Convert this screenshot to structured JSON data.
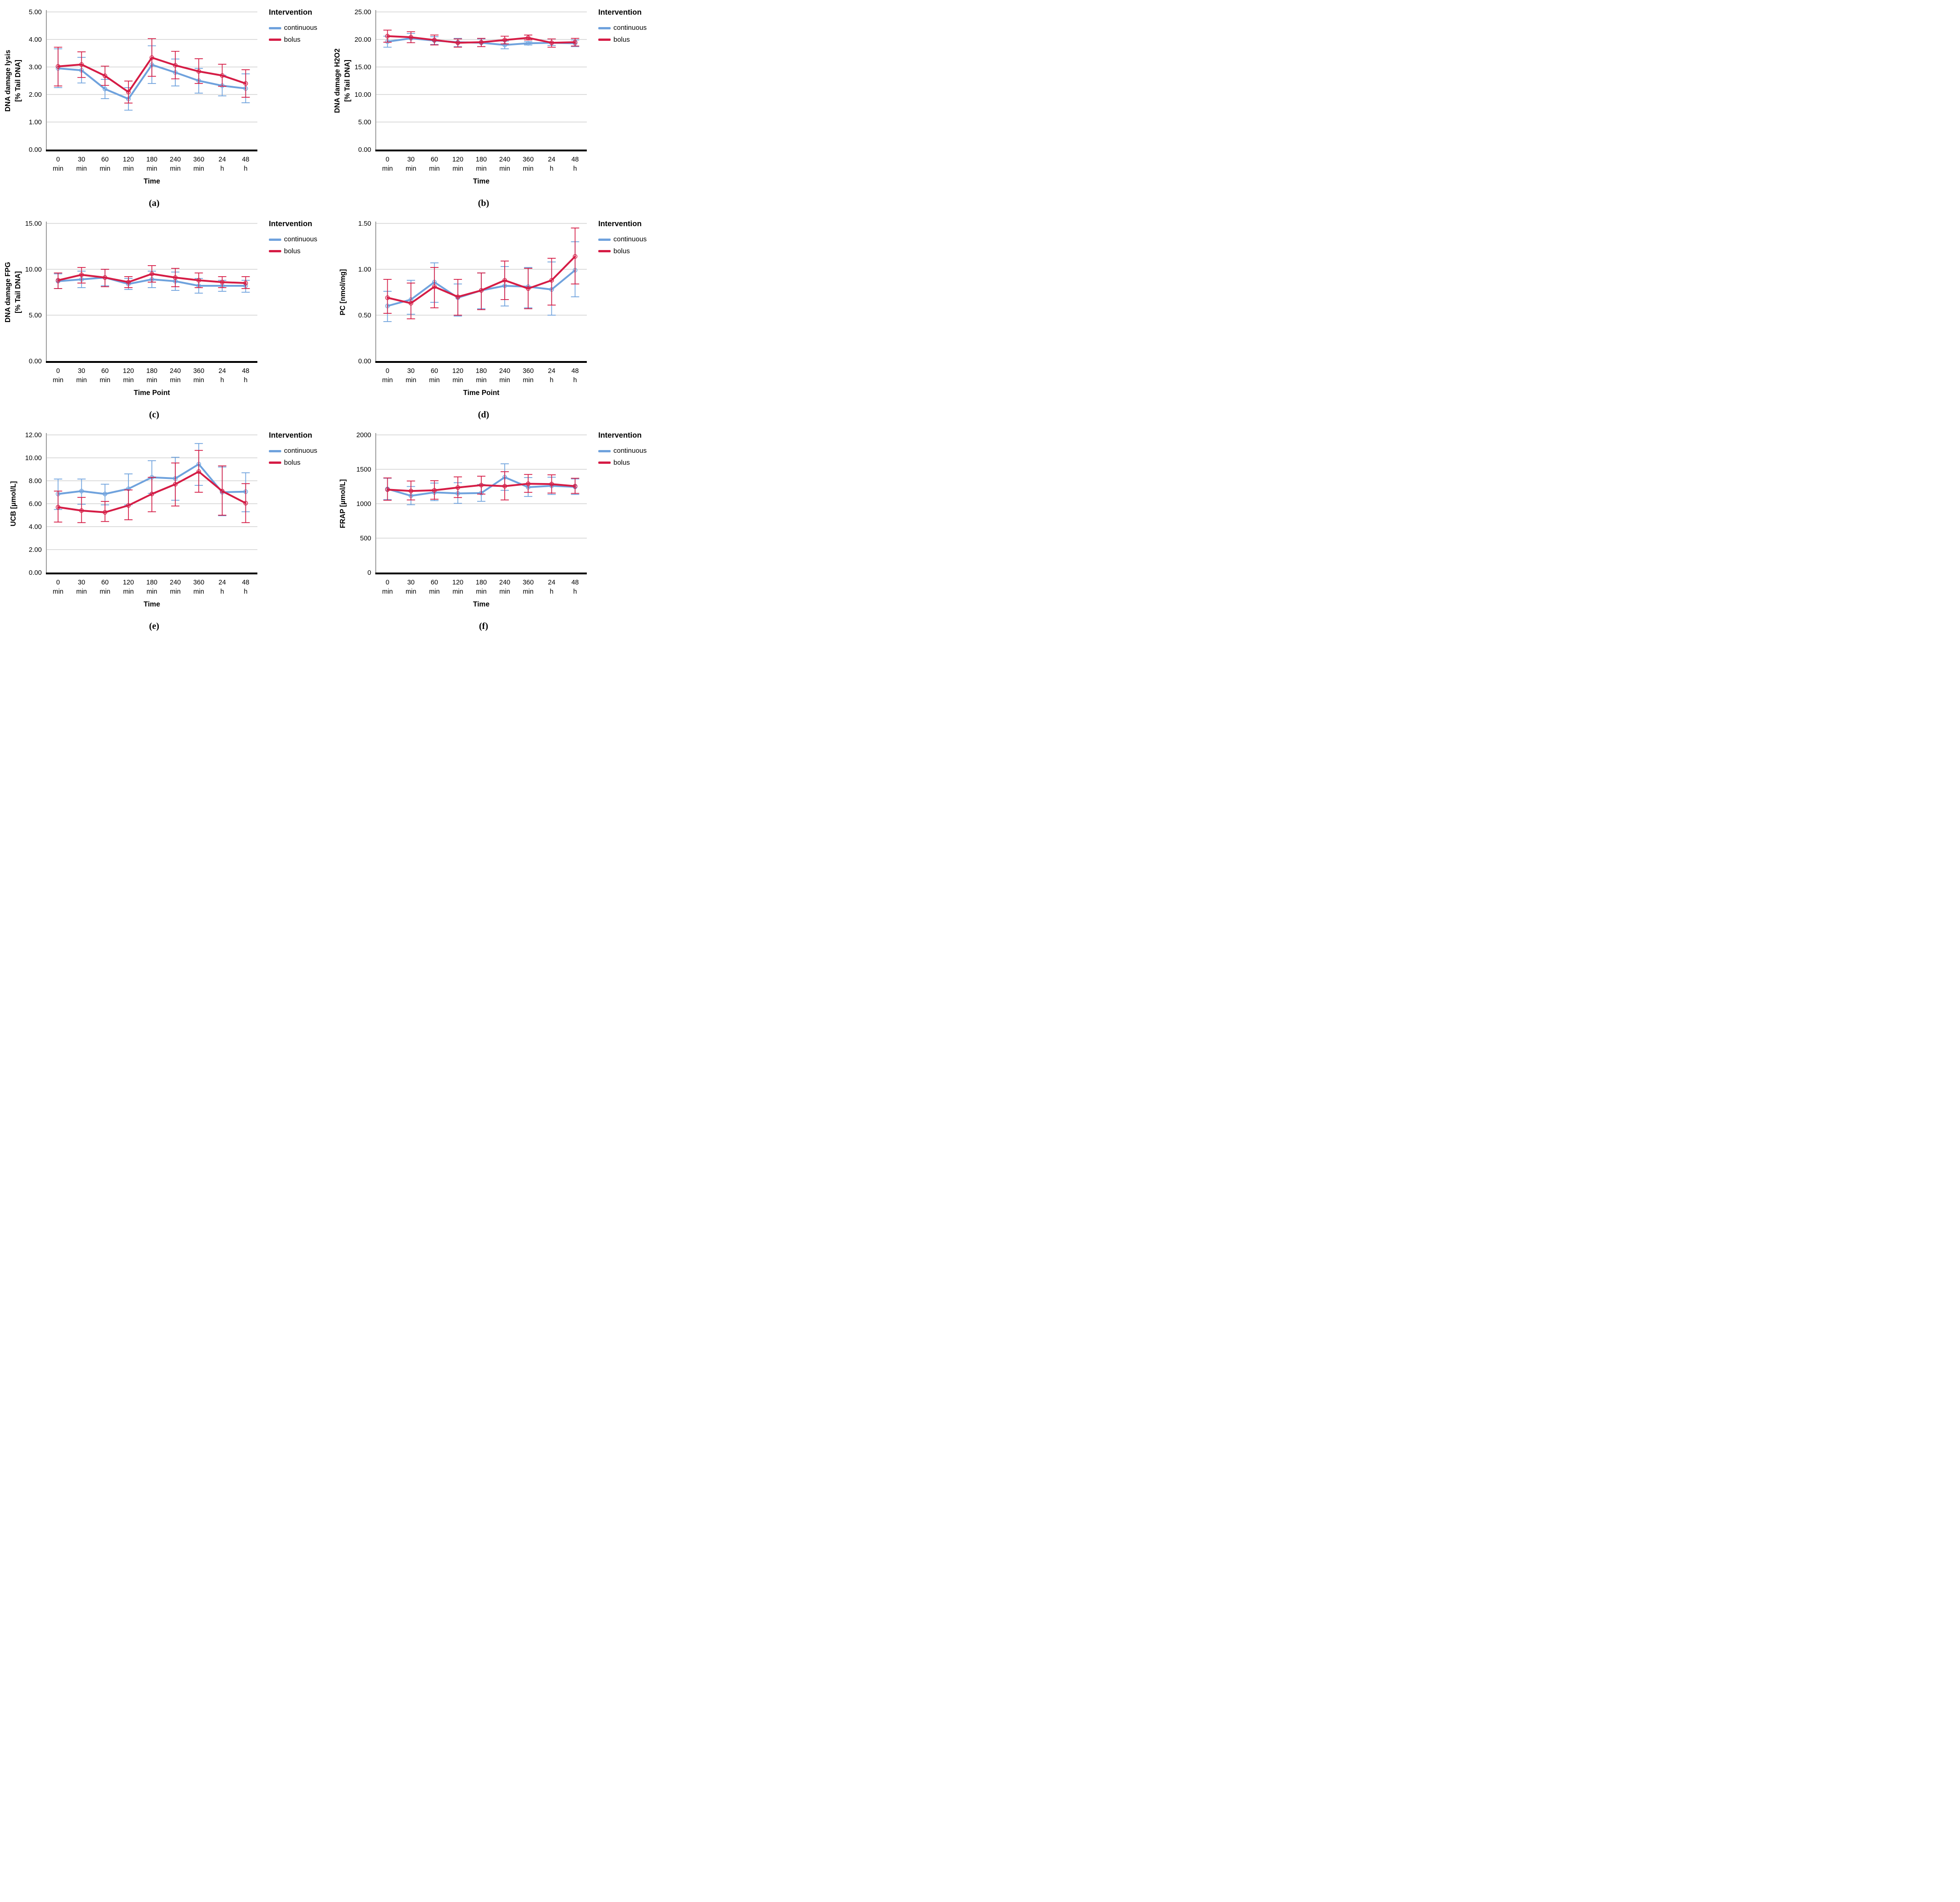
{
  "colors": {
    "continuous": "#6FA2DD",
    "bolus": "#D51C45",
    "gridline": "#C9C9C9",
    "axis_line": "#9E9E9E",
    "x_axis_line": "#000000"
  },
  "legend": {
    "title": "Intervention",
    "entries": [
      {
        "label": "continuous",
        "color_key": "continuous"
      },
      {
        "label": "bolus",
        "color_key": "bolus"
      }
    ]
  },
  "x_ticks": {
    "line1": [
      "0",
      "30",
      "60",
      "120",
      "180",
      "240",
      "360",
      "24",
      "48"
    ],
    "line2": [
      "min",
      "min",
      "min",
      "min",
      "min",
      "min",
      "min",
      "h",
      "h"
    ]
  },
  "chart_data": [
    {
      "key": "a",
      "type": "line",
      "caption": "(a)",
      "ylabel": "DNA damage lysis [% Tail DNA]",
      "ylabel_lines": [
        "DNA damage lysis",
        "[% Tail DNA]"
      ],
      "xlabel": "Time",
      "ylim": [
        0,
        5
      ],
      "yticks": [
        0,
        1,
        2,
        3,
        4,
        5
      ],
      "ytick_labels": [
        "0.00",
        "1.00",
        "2.00",
        "3.00",
        "4.00",
        "5.00"
      ],
      "categories": [
        "0 min",
        "30 min",
        "60 min",
        "120 min",
        "180 min",
        "240 min",
        "360 min",
        "24 h",
        "48 h"
      ],
      "series": [
        {
          "name": "continuous",
          "values": [
            2.95,
            2.88,
            2.2,
            1.84,
            3.08,
            2.8,
            2.5,
            2.32,
            2.22
          ],
          "err_low": [
            2.25,
            2.42,
            1.85,
            1.43,
            2.4,
            2.31,
            2.05,
            1.95,
            1.7
          ],
          "err_high": [
            3.66,
            3.35,
            2.55,
            2.25,
            3.77,
            3.29,
            2.95,
            2.7,
            2.75
          ]
        },
        {
          "name": "bolus",
          "values": [
            3.02,
            3.09,
            2.68,
            2.09,
            3.34,
            3.06,
            2.84,
            2.69,
            2.4
          ],
          "err_low": [
            2.31,
            2.62,
            2.33,
            1.69,
            2.66,
            2.57,
            2.4,
            2.3,
            1.9
          ],
          "err_high": [
            3.72,
            3.55,
            3.03,
            2.49,
            4.03,
            3.57,
            3.3,
            3.1,
            2.9
          ]
        }
      ]
    },
    {
      "key": "b",
      "type": "line",
      "caption": "(b)",
      "ylabel": "DNA damage H2O2 [% Tail DNA]",
      "ylabel_lines": [
        "DNA damage H2O2",
        "[% Tail DNA]"
      ],
      "xlabel": "Time",
      "ylim": [
        0,
        25
      ],
      "yticks": [
        0,
        5,
        10,
        15,
        20,
        25
      ],
      "ytick_labels": [
        "0.00",
        "5.00",
        "10.00",
        "15.00",
        "20.00",
        "25.00"
      ],
      "categories": [
        "0 min",
        "30 min",
        "60 min",
        "120 min",
        "180 min",
        "240 min",
        "360 min",
        "24 h",
        "48 h"
      ],
      "series": [
        {
          "name": "continuous",
          "values": [
            19.6,
            20.2,
            19.8,
            19.5,
            19.4,
            19.0,
            19.3,
            19.4,
            19.3
          ],
          "err_low": [
            18.6,
            19.4,
            19.1,
            18.7,
            18.7,
            18.3,
            19.0,
            18.9,
            18.7
          ],
          "err_high": [
            20.6,
            21.1,
            20.5,
            20.2,
            20.1,
            19.7,
            19.6,
            20.1,
            19.9
          ]
        },
        {
          "name": "bolus",
          "values": [
            20.6,
            20.4,
            19.9,
            19.4,
            19.5,
            19.9,
            20.3,
            19.4,
            19.5
          ],
          "err_low": [
            19.5,
            19.4,
            19.0,
            18.6,
            18.7,
            19.2,
            19.9,
            18.6,
            18.8
          ],
          "err_high": [
            21.7,
            21.4,
            20.8,
            20.1,
            20.2,
            20.6,
            20.8,
            20.1,
            20.2
          ]
        }
      ]
    },
    {
      "key": "c",
      "type": "line",
      "caption": "(c)",
      "ylabel": "DNA damage FPG [% Tail DNA]",
      "ylabel_lines": [
        "DNA damage FPG",
        "[% Tail DNA]"
      ],
      "xlabel": "Time Point",
      "ylim": [
        0,
        15
      ],
      "yticks": [
        0,
        5,
        10,
        15
      ],
      "ytick_labels": [
        "0.00",
        "5.00",
        "10.00",
        "15.00"
      ],
      "categories": [
        "0 min",
        "30 min",
        "60 min",
        "120 min",
        "180 min",
        "240 min",
        "360 min",
        "24 h",
        "48 h"
      ],
      "series": [
        {
          "name": "continuous",
          "values": [
            8.7,
            8.9,
            9.1,
            8.4,
            8.9,
            8.7,
            8.2,
            8.2,
            8.2
          ],
          "err_low": [
            7.9,
            8.0,
            8.2,
            7.8,
            8.0,
            7.7,
            7.4,
            7.6,
            7.5
          ],
          "err_high": [
            9.5,
            9.8,
            10.0,
            9.0,
            9.8,
            9.7,
            9.0,
            8.8,
            8.8
          ]
        },
        {
          "name": "bolus",
          "values": [
            8.8,
            9.4,
            9.1,
            8.6,
            9.5,
            9.1,
            8.8,
            8.6,
            8.5
          ],
          "err_low": [
            7.9,
            8.5,
            8.1,
            8.0,
            8.6,
            8.1,
            8.0,
            8.0,
            7.9
          ],
          "err_high": [
            9.6,
            10.2,
            10.0,
            9.2,
            10.4,
            10.1,
            9.6,
            9.2,
            9.2
          ]
        }
      ]
    },
    {
      "key": "d",
      "type": "line",
      "caption": "(d)",
      "ylabel": "PC [nmol/mg]",
      "ylabel_lines": [
        "PC [nmol/mg]"
      ],
      "xlabel": "Time Point",
      "ylim": [
        0,
        1.5
      ],
      "yticks": [
        0,
        0.5,
        1.0,
        1.5
      ],
      "ytick_labels": [
        "0.00",
        "0.50",
        "1.00",
        "1.50"
      ],
      "categories": [
        "0 min",
        "30 min",
        "60 min",
        "120 min",
        "180 min",
        "240 min",
        "360 min",
        "24 h",
        "48 h"
      ],
      "series": [
        {
          "name": "continuous",
          "values": [
            0.6,
            0.67,
            0.86,
            0.69,
            0.77,
            0.82,
            0.81,
            0.78,
            0.99
          ],
          "err_low": [
            0.43,
            0.51,
            0.64,
            0.49,
            0.57,
            0.6,
            0.58,
            0.5,
            0.7
          ],
          "err_high": [
            0.76,
            0.88,
            1.07,
            0.84,
            0.96,
            1.03,
            1.02,
            1.08,
            1.3
          ]
        },
        {
          "name": "bolus",
          "values": [
            0.69,
            0.63,
            0.81,
            0.7,
            0.77,
            0.88,
            0.79,
            0.88,
            1.14
          ],
          "err_low": [
            0.52,
            0.46,
            0.58,
            0.5,
            0.56,
            0.67,
            0.57,
            0.61,
            0.84
          ],
          "err_high": [
            0.89,
            0.85,
            1.02,
            0.89,
            0.96,
            1.09,
            1.01,
            1.12,
            1.45
          ]
        }
      ]
    },
    {
      "key": "e",
      "type": "line",
      "caption": "(e)",
      "ylabel": "UCB [µmol/L]",
      "ylabel_lines": [
        "UCB [µmol/L]"
      ],
      "xlabel": "Time",
      "ylim": [
        0,
        12
      ],
      "yticks": [
        0,
        2,
        4,
        6,
        8,
        10,
        12
      ],
      "ytick_labels": [
        "0.00",
        "2.00",
        "4.00",
        "6.00",
        "8.00",
        "10.00",
        "12.00"
      ],
      "categories": [
        "0 min",
        "30 min",
        "60 min",
        "120 min",
        "180 min",
        "240 min",
        "360 min",
        "24 h",
        "48 h"
      ],
      "series": [
        {
          "name": "continuous",
          "values": [
            6.85,
            7.1,
            6.85,
            7.3,
            8.3,
            8.2,
            9.45,
            7.0,
            7.05
          ],
          "err_low": [
            5.5,
            5.95,
            5.9,
            5.9,
            6.9,
            6.3,
            7.6,
            4.95,
            5.3
          ],
          "err_high": [
            8.15,
            8.15,
            7.7,
            8.6,
            9.75,
            10.05,
            11.25,
            9.2,
            8.7
          ]
        },
        {
          "name": "bolus",
          "values": [
            5.7,
            5.4,
            5.25,
            5.85,
            6.85,
            7.7,
            8.8,
            7.1,
            6.05
          ],
          "err_low": [
            4.4,
            4.35,
            4.45,
            4.6,
            5.3,
            5.8,
            7.0,
            5.0,
            4.35
          ],
          "err_high": [
            7.1,
            6.55,
            6.2,
            7.2,
            8.3,
            9.55,
            10.65,
            9.3,
            7.75
          ]
        }
      ]
    },
    {
      "key": "f",
      "type": "line",
      "caption": "(f)",
      "ylabel": "FRAP [µmol/L]",
      "ylabel_lines": [
        "FRAP [µmol/L]"
      ],
      "xlabel": "Time",
      "ylim": [
        0,
        2000
      ],
      "yticks": [
        0,
        500,
        1000,
        1500,
        2000
      ],
      "ytick_labels": [
        "0",
        "500",
        "1000",
        "1500",
        "2000"
      ],
      "categories": [
        "0 min",
        "30 min",
        "60 min",
        "120 min",
        "180 min",
        "240 min",
        "360 min",
        "24 h",
        "48 h"
      ],
      "series": [
        {
          "name": "continuous",
          "values": [
            1215,
            1115,
            1165,
            1150,
            1155,
            1385,
            1240,
            1260,
            1245
          ],
          "err_low": [
            1060,
            985,
            1045,
            1005,
            1035,
            1195,
            1105,
            1135,
            1135
          ],
          "err_high": [
            1370,
            1250,
            1300,
            1305,
            1280,
            1580,
            1380,
            1385,
            1360
          ]
        },
        {
          "name": "bolus",
          "values": [
            1205,
            1185,
            1195,
            1235,
            1270,
            1255,
            1290,
            1285,
            1255
          ],
          "err_low": [
            1050,
            1055,
            1065,
            1090,
            1140,
            1055,
            1165,
            1155,
            1150
          ],
          "err_high": [
            1375,
            1330,
            1335,
            1390,
            1400,
            1465,
            1425,
            1420,
            1370
          ]
        }
      ]
    }
  ]
}
